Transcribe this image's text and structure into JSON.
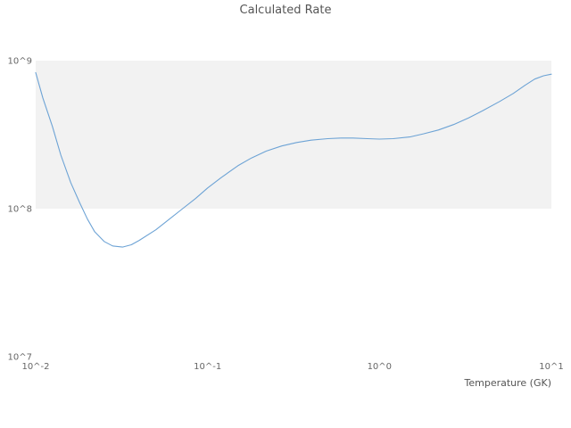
{
  "figure": {
    "title": "Calculated Rate"
  },
  "chart_data": {
    "type": "line",
    "title": "Calculated Rate",
    "xlabel": "Temperature (GK)",
    "ylabel": "",
    "x_scale": "log",
    "y_scale": "log",
    "xlim": [
      0.01,
      10
    ],
    "ylim": [
      10000000.0,
      1000000000.0
    ],
    "grid": false,
    "legend": "none",
    "x_ticks": [
      {
        "value": 0.01,
        "label": "10^-2"
      },
      {
        "value": 0.1,
        "label": "10^-1"
      },
      {
        "value": 1,
        "label": "10^0"
      },
      {
        "value": 10,
        "label": "10^1"
      }
    ],
    "y_ticks": [
      {
        "value": 10000000.0,
        "label": "10^7"
      },
      {
        "value": 100000000.0,
        "label": "10^8"
      },
      {
        "value": 1000000000.0,
        "label": "10^9"
      }
    ],
    "band": {
      "y_from": 100000000.0,
      "y_to": 1000000000.0,
      "color": "#f2f2f2"
    },
    "line_color": "#6da3d5",
    "tick_color": "#666666",
    "label_color": "#555555",
    "x": [
      0.01,
      0.011,
      0.0125,
      0.014,
      0.016,
      0.018,
      0.02,
      0.022,
      0.025,
      0.028,
      0.032,
      0.036,
      0.04,
      0.05,
      0.06,
      0.07,
      0.085,
      0.1,
      0.12,
      0.15,
      0.18,
      0.22,
      0.27,
      0.33,
      0.4,
      0.5,
      0.6,
      0.7,
      0.85,
      1.0,
      1.2,
      1.5,
      1.8,
      2.2,
      2.7,
      3.3,
      4.0,
      5.0,
      6.0,
      7.0,
      8.0,
      9.0,
      10.0
    ],
    "y": [
      830000000.0,
      560000000.0,
      360000000.0,
      230000000.0,
      150000000.0,
      110000000.0,
      85000000.0,
      70000000.0,
      60000000.0,
      56000000.0,
      55000000.0,
      57000000.0,
      61000000.0,
      72000000.0,
      85000000.0,
      98000000.0,
      117000000.0,
      138000000.0,
      162000000.0,
      195000000.0,
      220000000.0,
      245000000.0,
      265000000.0,
      280000000.0,
      290000000.0,
      297000000.0,
      300000000.0,
      300000000.0,
      297000000.0,
      295000000.0,
      297000000.0,
      305000000.0,
      320000000.0,
      340000000.0,
      370000000.0,
      410000000.0,
      460000000.0,
      530000000.0,
      600000000.0,
      680000000.0,
      750000000.0,
      790000000.0,
      810000000.0
    ]
  }
}
